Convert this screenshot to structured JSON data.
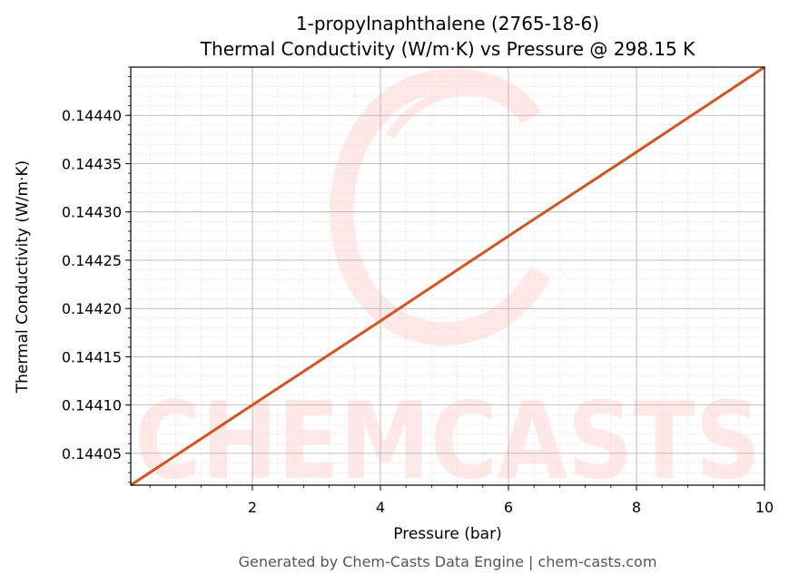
{
  "chart_data": {
    "type": "line",
    "title": "1-propylnaphthalene (2765-18-6)",
    "subtitle": "Thermal Conductivity (W/m·K) vs Pressure @ 298.15 K",
    "xlabel": "Pressure (bar)",
    "ylabel": "Thermal Conductivity (W/m·K)",
    "xlim": [
      0.1,
      10
    ],
    "ylim": [
      0.144017,
      0.14445
    ],
    "x_ticks": [
      2,
      4,
      6,
      8,
      10
    ],
    "x_tick_labels": [
      "2",
      "4",
      "6",
      "8",
      "10"
    ],
    "y_ticks": [
      0.14405,
      0.1441,
      0.14415,
      0.1442,
      0.14425,
      0.1443,
      0.14435,
      0.1444
    ],
    "y_tick_labels": [
      "0.14405",
      "0.14410",
      "0.14415",
      "0.14420",
      "0.14425",
      "0.14430",
      "0.14435",
      "0.14440"
    ],
    "grid": true,
    "series": [
      {
        "color": "#d4541f",
        "x": [
          0.1,
          2,
          4,
          6,
          8,
          10
        ],
        "y": [
          0.144017,
          0.1441,
          0.144187,
          0.144275,
          0.144362,
          0.14445
        ]
      }
    ],
    "watermark": "CHEMCASTS",
    "footer": "Generated by Chem-Casts Data Engine | chem-casts.com"
  }
}
